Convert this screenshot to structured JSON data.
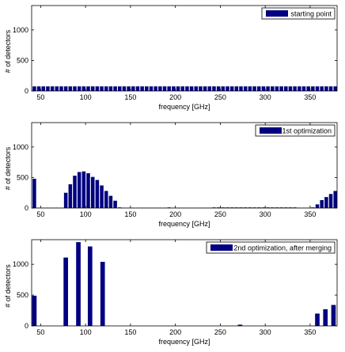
{
  "colors": {
    "bar": "#000080",
    "axis": "#000000",
    "background": "#ffffff"
  },
  "chart_data": [
    {
      "type": "bar",
      "title": "",
      "xlabel": "frequency [GHz]",
      "ylabel": "# of detectors",
      "xlim": [
        40,
        380
      ],
      "ylim": [
        0,
        1400
      ],
      "xticks": [
        50,
        100,
        150,
        200,
        250,
        300,
        350
      ],
      "yticks": [
        0,
        500,
        1000
      ],
      "grid": false,
      "legend": {
        "entries": [
          "starting point"
        ],
        "position": "top-right"
      },
      "bar_width": 4,
      "series": [
        {
          "name": "starting point",
          "x": [
            43,
            48,
            53,
            58,
            63,
            68,
            73,
            78,
            83,
            88,
            93,
            98,
            103,
            108,
            113,
            118,
            123,
            128,
            133,
            138,
            143,
            148,
            153,
            158,
            163,
            168,
            173,
            178,
            183,
            188,
            193,
            198,
            203,
            208,
            213,
            218,
            223,
            228,
            233,
            238,
            243,
            248,
            253,
            258,
            263,
            268,
            273,
            278,
            283,
            288,
            293,
            298,
            303,
            308,
            313,
            318,
            323,
            328,
            333,
            338,
            343,
            348,
            353,
            358,
            363,
            368,
            373,
            378
          ],
          "values": [
            75,
            75,
            75,
            75,
            75,
            75,
            75,
            75,
            75,
            75,
            75,
            75,
            75,
            75,
            75,
            75,
            75,
            75,
            75,
            75,
            75,
            75,
            75,
            75,
            75,
            75,
            75,
            75,
            75,
            75,
            75,
            75,
            75,
            75,
            75,
            75,
            75,
            75,
            75,
            75,
            75,
            75,
            75,
            75,
            75,
            75,
            75,
            75,
            75,
            75,
            75,
            75,
            75,
            75,
            75,
            75,
            75,
            75,
            75,
            75,
            75,
            75,
            75,
            75,
            75,
            75,
            75,
            75
          ]
        }
      ]
    },
    {
      "type": "bar",
      "title": "",
      "xlabel": "frequency [GHz]",
      "ylabel": "# of detectors",
      "xlim": [
        40,
        380
      ],
      "ylim": [
        0,
        1400
      ],
      "xticks": [
        50,
        100,
        150,
        200,
        250,
        300,
        350
      ],
      "yticks": [
        0,
        500,
        1000
      ],
      "grid": false,
      "legend": {
        "entries": [
          "1st optimization"
        ],
        "position": "top-right"
      },
      "bar_width": 4,
      "series": [
        {
          "name": "1st optimization",
          "x": [
            43,
            48,
            53,
            58,
            63,
            68,
            73,
            78,
            83,
            88,
            93,
            98,
            103,
            108,
            113,
            118,
            123,
            128,
            133,
            138,
            143,
            148,
            153,
            158,
            163,
            168,
            173,
            178,
            183,
            188,
            193,
            198,
            203,
            208,
            213,
            218,
            223,
            228,
            233,
            238,
            243,
            248,
            253,
            258,
            263,
            268,
            273,
            278,
            283,
            288,
            293,
            298,
            303,
            308,
            313,
            318,
            323,
            328,
            333,
            338,
            343,
            348,
            353,
            358,
            363,
            368,
            373,
            378
          ],
          "values": [
            480,
            5,
            5,
            5,
            5,
            5,
            5,
            250,
            390,
            530,
            590,
            600,
            570,
            510,
            460,
            370,
            280,
            200,
            120,
            10,
            5,
            5,
            5,
            5,
            5,
            5,
            5,
            5,
            5,
            5,
            10,
            5,
            5,
            5,
            5,
            5,
            5,
            5,
            5,
            5,
            10,
            10,
            10,
            10,
            10,
            10,
            10,
            10,
            10,
            10,
            10,
            10,
            10,
            10,
            10,
            10,
            10,
            10,
            10,
            5,
            5,
            5,
            10,
            60,
            130,
            180,
            230,
            280
          ]
        }
      ]
    },
    {
      "type": "bar",
      "title": "",
      "xlabel": "frequency [GHz]",
      "ylabel": "# of detectors",
      "xlim": [
        40,
        380
      ],
      "ylim": [
        0,
        1400
      ],
      "xticks": [
        50,
        100,
        150,
        200,
        250,
        300,
        350
      ],
      "yticks": [
        0,
        500,
        1000
      ],
      "grid": false,
      "legend": {
        "entries": [
          "2nd optimization, after merging"
        ],
        "position": "top-right"
      },
      "bar_width": 5,
      "series": [
        {
          "name": "2nd optimization, after merging",
          "x": [
            43,
            78,
            92,
            105,
            119,
            272,
            358,
            367,
            376
          ],
          "values": [
            490,
            1110,
            1360,
            1290,
            1040,
            20,
            200,
            270,
            340
          ]
        }
      ]
    }
  ]
}
